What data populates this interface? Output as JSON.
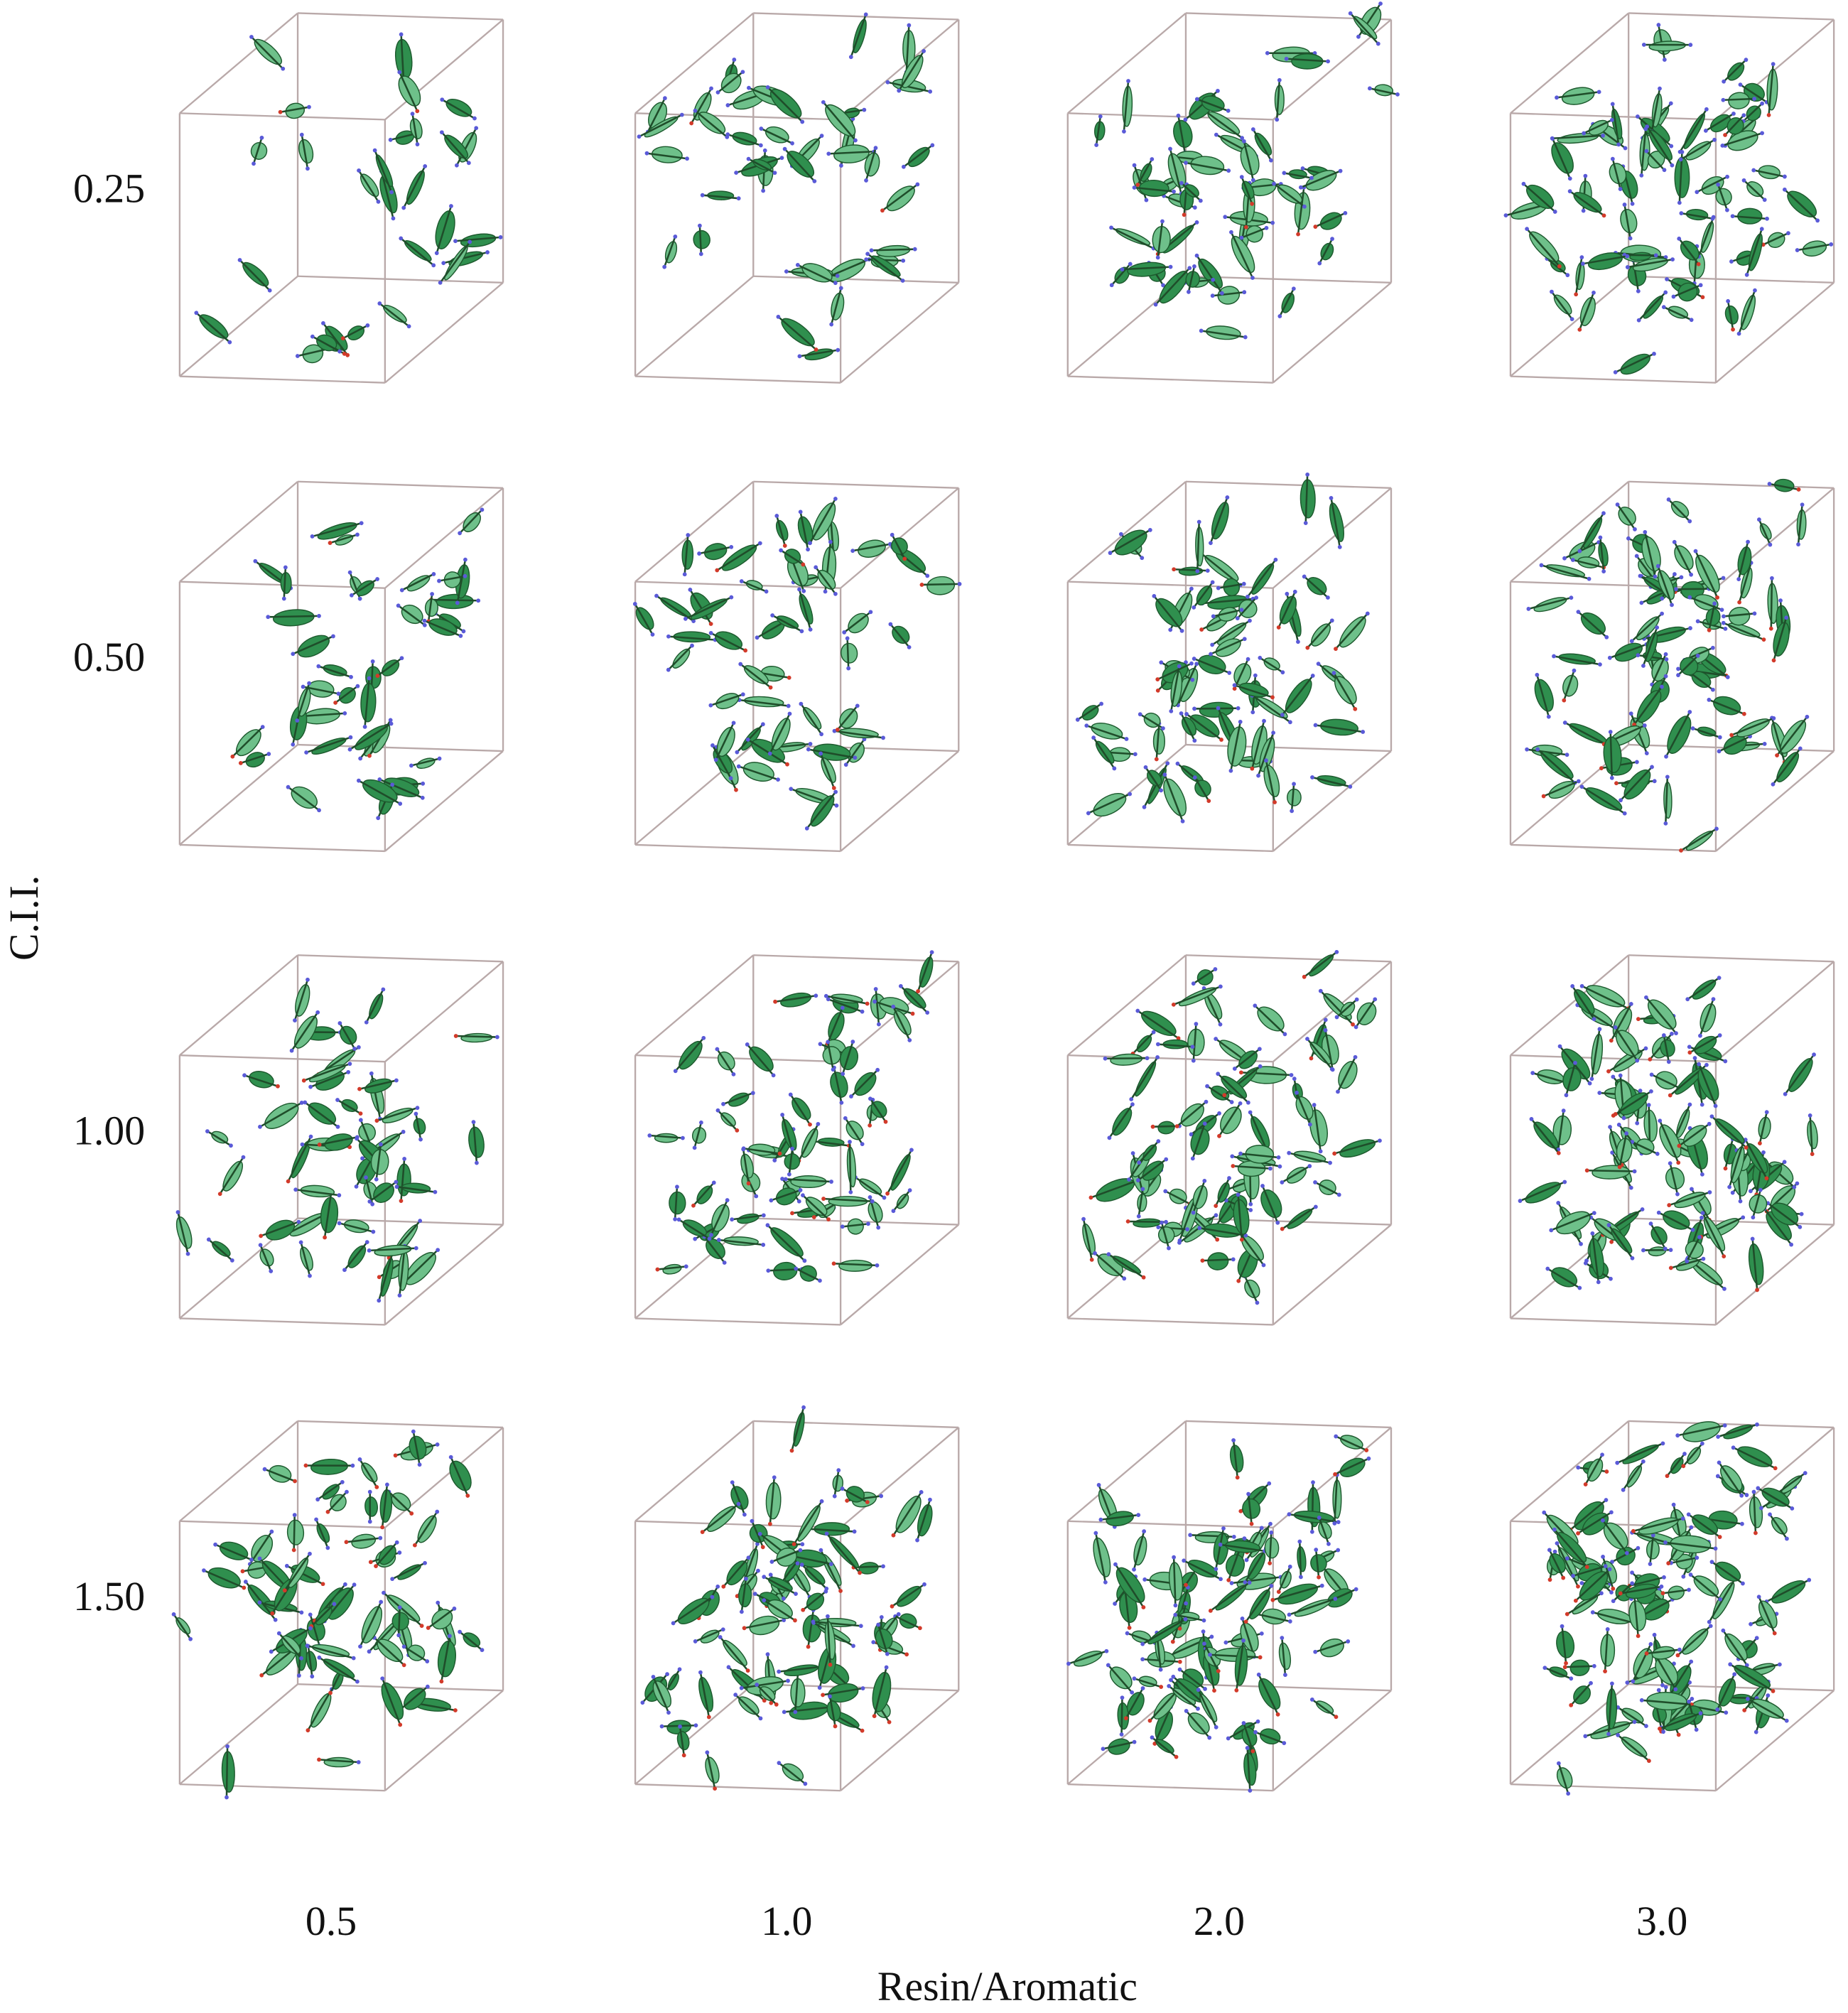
{
  "figure": {
    "row_labels": [
      "0.25",
      "0.50",
      "1.00",
      "1.50"
    ],
    "column_labels": [
      "0.5",
      "1.0",
      "2.0",
      "3.0"
    ],
    "y_title": "C.I.I.",
    "x_title": "Resin/Aromatic"
  }
}
